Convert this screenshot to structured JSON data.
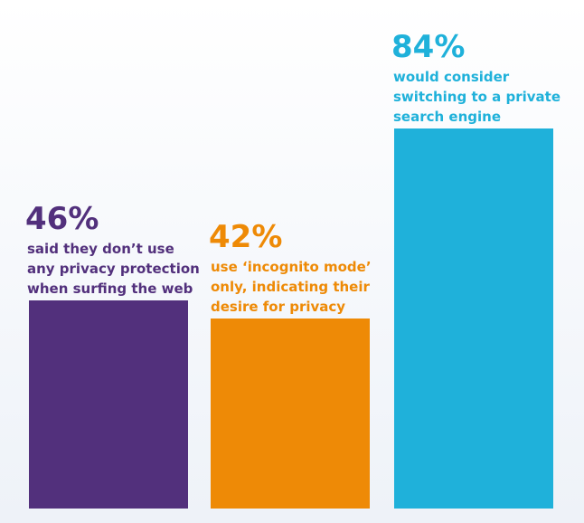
{
  "chart_data": {
    "type": "bar",
    "title": "",
    "xlabel": "",
    "ylabel": "",
    "ylim": [
      0,
      100
    ],
    "grid": false,
    "bars": [
      {
        "value": 46,
        "value_label": "46%",
        "description": "said they don’t use\nany privacy protection\nwhen surfing the web",
        "color": "#52307c"
      },
      {
        "value": 42,
        "value_label": "42%",
        "description": "use ‘incognito mode’\nonly, indicating their\ndesire for privacy",
        "color": "#ee8a06"
      },
      {
        "value": 84,
        "value_label": "84%",
        "description": "would consider\nswitching to a private\nsearch engine",
        "color": "#1fb1da"
      }
    ]
  }
}
